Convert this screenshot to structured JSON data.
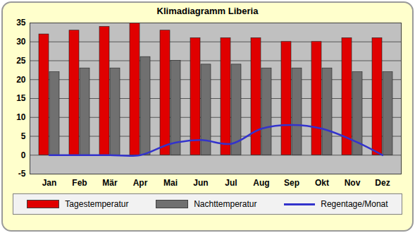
{
  "chart_data": {
    "type": "bar",
    "title": "Klimadiagramm Liberia",
    "categories": [
      "Jan",
      "Feb",
      "Mär",
      "Apr",
      "Mai",
      "Jun",
      "Jul",
      "Aug",
      "Sep",
      "Okt",
      "Nov",
      "Dez"
    ],
    "series": [
      {
        "name": "Tagestemperatur",
        "type": "bar",
        "color": "#e00000",
        "values": [
          32,
          33,
          34,
          35,
          33,
          31,
          31,
          31,
          30,
          30,
          31,
          31
        ]
      },
      {
        "name": "Nachttemperatur",
        "type": "bar",
        "color": "#707070",
        "values": [
          22,
          23,
          23,
          26,
          25,
          24,
          24,
          23,
          23,
          23,
          22,
          22
        ]
      },
      {
        "name": "Regentage/Monat",
        "type": "line",
        "color": "#3333cc",
        "values": [
          0,
          0,
          0,
          0,
          3,
          4,
          3,
          7,
          8,
          7,
          4,
          0
        ]
      }
    ],
    "ylim": [
      -5,
      35
    ],
    "yticks": [
      -5,
      0,
      5,
      10,
      15,
      20,
      25,
      30,
      35
    ],
    "grid": true,
    "legend": "bottom"
  }
}
